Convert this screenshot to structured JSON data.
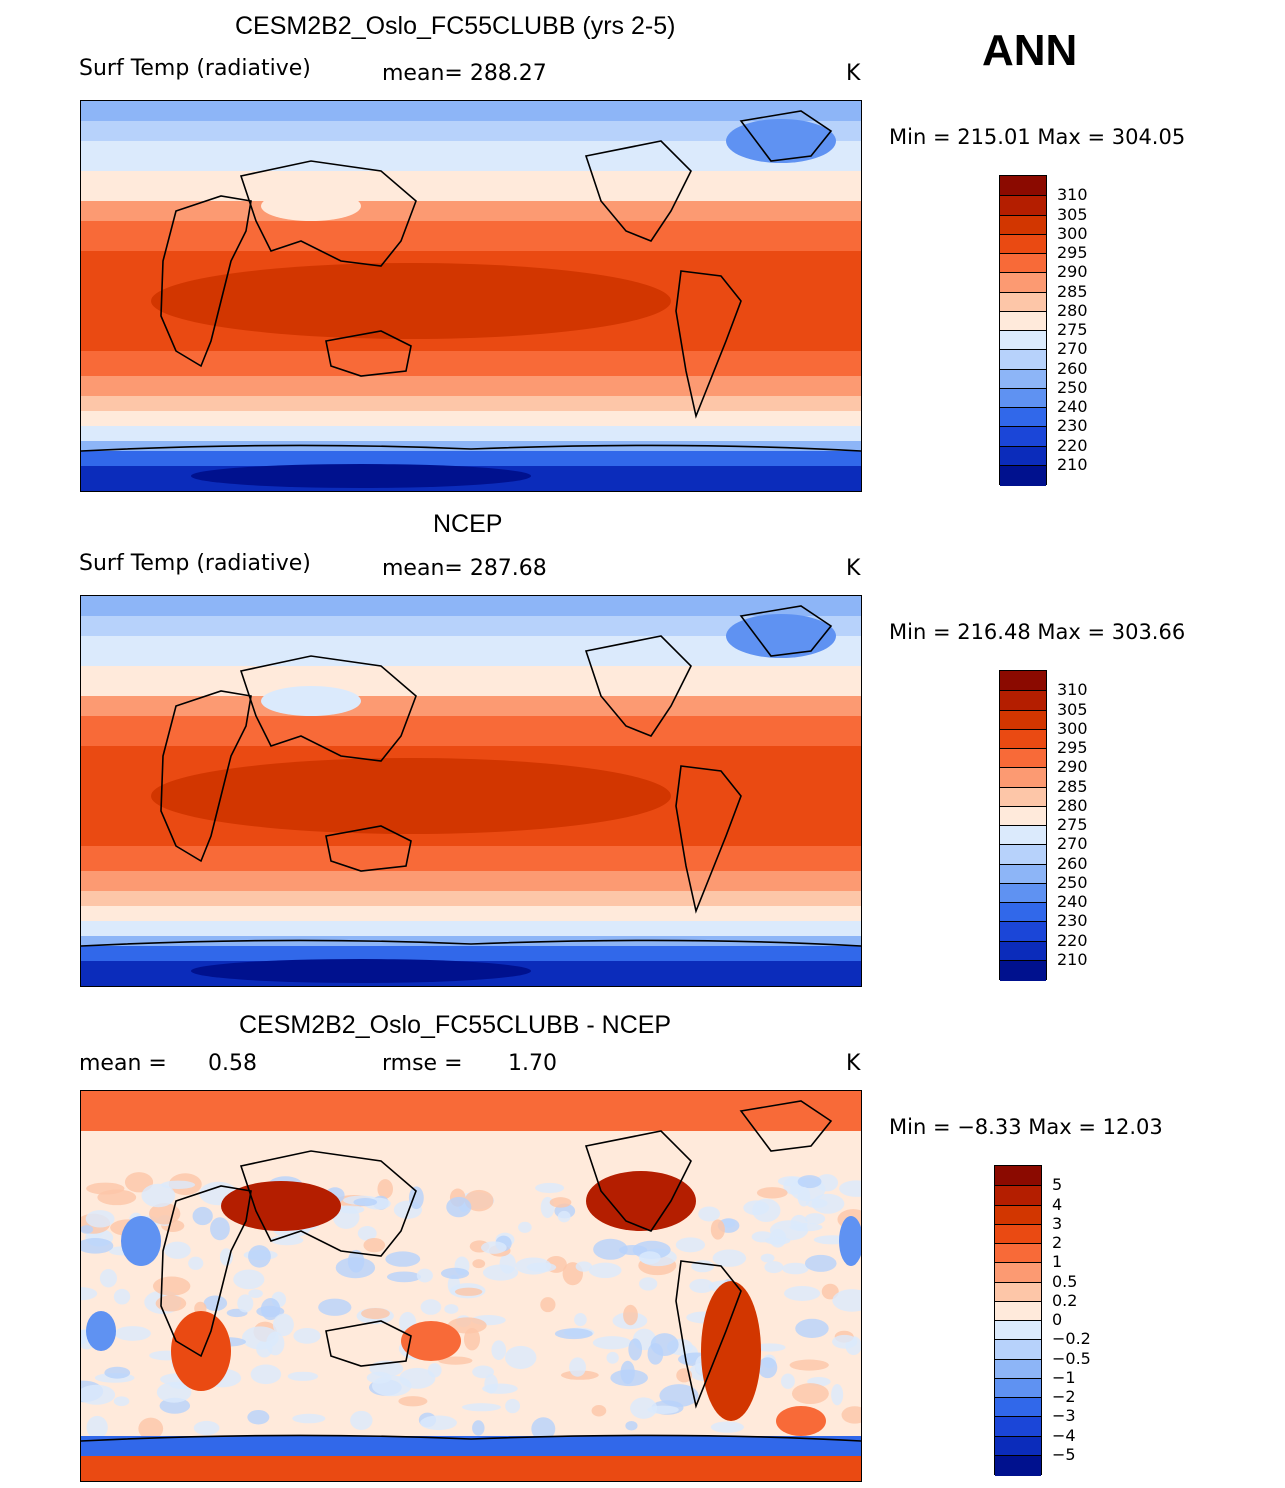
{
  "season": "ANN",
  "chart_data": [
    {
      "type": "heatmap",
      "title": "CESM2B2_Oslo_FC55CLUBB (yrs 2-5)",
      "variable": "Surf Temp (radiative)",
      "mean_text": "mean= 288.27",
      "units": "K",
      "minmax": "Min = 215.01 Max = 304.05",
      "min": 215.01,
      "max": 304.05,
      "levels": [
        "310",
        "305",
        "300",
        "295",
        "290",
        "285",
        "280",
        "275",
        "270",
        "260",
        "250",
        "240",
        "230",
        "220",
        "210"
      ],
      "colors": [
        "#8b0a00",
        "#b41e00",
        "#d23600",
        "#ea4a12",
        "#f86a38",
        "#fc9a72",
        "#fdc6a8",
        "#ffeadb",
        "#dbeafc",
        "#b7d2fb",
        "#8db5f7",
        "#5f92f2",
        "#3168ea",
        "#1b46d8",
        "#0b2cbb",
        "#00118e"
      ]
    },
    {
      "type": "heatmap",
      "title": "NCEP",
      "variable": "Surf Temp (radiative)",
      "mean_text": "mean= 287.68",
      "units": "K",
      "minmax": "Min = 216.48 Max = 303.66",
      "min": 216.48,
      "max": 303.66,
      "levels": [
        "310",
        "305",
        "300",
        "295",
        "290",
        "285",
        "280",
        "275",
        "270",
        "260",
        "250",
        "240",
        "230",
        "220",
        "210"
      ],
      "colors": [
        "#8b0a00",
        "#b41e00",
        "#d23600",
        "#ea4a12",
        "#f86a38",
        "#fc9a72",
        "#fdc6a8",
        "#ffeadb",
        "#dbeafc",
        "#b7d2fb",
        "#8db5f7",
        "#5f92f2",
        "#3168ea",
        "#1b46d8",
        "#0b2cbb",
        "#00118e"
      ]
    },
    {
      "type": "heatmap",
      "title": "CESM2B2_Oslo_FC55CLUBB - NCEP",
      "mean_label": "mean =",
      "mean_value": "0.58",
      "rmse_label": "rmse =",
      "rmse_value": "1.70",
      "units": "K",
      "minmax": "Min = −8.33 Max = 12.03",
      "min": -8.33,
      "max": 12.03,
      "levels": [
        "5",
        "4",
        "3",
        "2",
        "1",
        "0.5",
        "0.2",
        "0",
        "−0.2",
        "−0.5",
        "−1",
        "−2",
        "−3",
        "−4",
        "−5"
      ],
      "colors": [
        "#8b0a00",
        "#b41e00",
        "#d23600",
        "#ea4a12",
        "#f86a38",
        "#fc9a72",
        "#fdc6a8",
        "#ffeadb",
        "#dbeafc",
        "#b7d2fb",
        "#8db5f7",
        "#5f92f2",
        "#3168ea",
        "#1b46d8",
        "#0b2cbb",
        "#00118e"
      ]
    }
  ]
}
